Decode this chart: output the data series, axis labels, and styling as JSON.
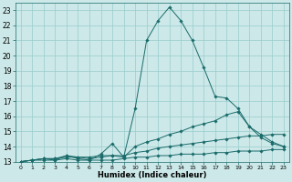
{
  "xlabel": "Humidex (Indice chaleur)",
  "bg_color": "#cce8e8",
  "grid_color": "#99cccc",
  "line_color": "#1a6b6b",
  "xlim": [
    -0.5,
    23.5
  ],
  "ylim": [
    13,
    23.5
  ],
  "xticks": [
    0,
    1,
    2,
    3,
    4,
    5,
    6,
    7,
    8,
    9,
    10,
    11,
    12,
    13,
    14,
    15,
    16,
    17,
    18,
    19,
    20,
    21,
    22,
    23
  ],
  "yticks": [
    13,
    14,
    15,
    16,
    17,
    18,
    19,
    20,
    21,
    22,
    23
  ],
  "series": [
    {
      "x": [
        0,
        1,
        2,
        3,
        4,
        5,
        6,
        7,
        8,
        9,
        10,
        11,
        12,
        13,
        14,
        15,
        16,
        17,
        18,
        19,
        20,
        21,
        22,
        23
      ],
      "y": [
        13,
        13.1,
        13.1,
        13.1,
        13.2,
        13.1,
        13.1,
        13.1,
        13.1,
        13.2,
        13.3,
        13.3,
        13.4,
        13.4,
        13.5,
        13.5,
        13.5,
        13.6,
        13.6,
        13.7,
        13.7,
        13.7,
        13.8,
        13.8
      ]
    },
    {
      "x": [
        0,
        1,
        2,
        3,
        4,
        5,
        6,
        7,
        8,
        9,
        10,
        11,
        12,
        13,
        14,
        15,
        16,
        17,
        18,
        19,
        20,
        21,
        22,
        23
      ],
      "y": [
        13,
        13.1,
        13.2,
        13.2,
        13.3,
        13.3,
        13.3,
        13.4,
        13.4,
        13.4,
        13.6,
        13.7,
        13.9,
        14.0,
        14.1,
        14.2,
        14.3,
        14.4,
        14.5,
        14.6,
        14.7,
        14.7,
        14.8,
        14.8
      ]
    },
    {
      "x": [
        0,
        1,
        2,
        3,
        4,
        5,
        6,
        7,
        8,
        9,
        10,
        11,
        12,
        13,
        14,
        15,
        16,
        17,
        18,
        19,
        20,
        21,
        22,
        23
      ],
      "y": [
        13,
        13.1,
        13.2,
        13.2,
        13.4,
        13.3,
        13.2,
        13.3,
        13.4,
        13.3,
        14.0,
        14.3,
        14.5,
        14.8,
        15.0,
        15.3,
        15.5,
        15.7,
        16.1,
        16.3,
        15.3,
        14.8,
        14.3,
        14.0
      ]
    },
    {
      "x": [
        0,
        1,
        2,
        3,
        4,
        5,
        6,
        7,
        8,
        9,
        10,
        11,
        12,
        13,
        14,
        15,
        16,
        17,
        18,
        19,
        20,
        21,
        22,
        23
      ],
      "y": [
        13,
        13.1,
        13.2,
        13.1,
        13.4,
        13.2,
        13.1,
        13.5,
        14.2,
        13.3,
        16.5,
        21.0,
        22.3,
        23.2,
        22.3,
        21.0,
        19.2,
        17.3,
        17.2,
        16.5,
        15.3,
        14.6,
        14.2,
        14.0
      ]
    }
  ]
}
